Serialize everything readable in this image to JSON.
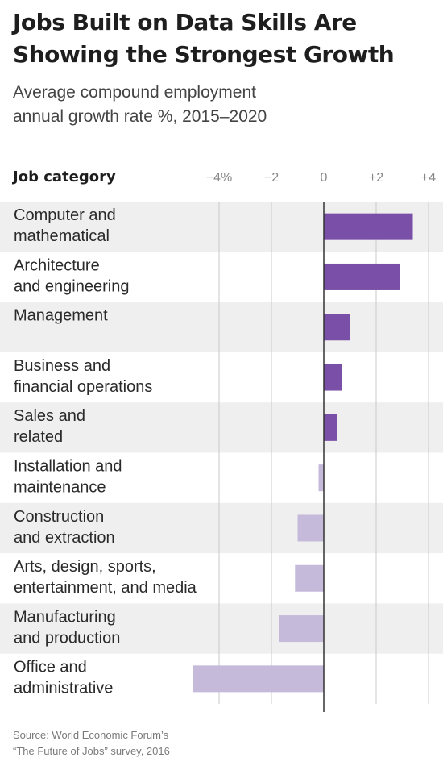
{
  "title_lines": [
    "Jobs Built on Data Skills Are",
    "Showing the Strongest Growth"
  ],
  "subtitle_lines": [
    "Average compound employment",
    "annual growth rate %, 2015–2020"
  ],
  "source_lines": [
    "Source: World Economic Forum’s",
    "“The Future of Jobs” survey, 2016"
  ],
  "colors": {
    "positive": "#7a4fa8",
    "negative": "#c6badb",
    "band": "#efefef",
    "grid": "#c9c9c9",
    "zero": "#333333"
  },
  "chart_data": {
    "type": "bar",
    "orientation": "horizontal",
    "category_header": "Job category",
    "xlim": [
      -5,
      4
    ],
    "ticks": [
      {
        "value": -4,
        "label": "−4%"
      },
      {
        "value": -2,
        "label": "−2"
      },
      {
        "value": 0,
        "label": "0"
      },
      {
        "value": 2,
        "label": "+2"
      },
      {
        "value": 4,
        "label": "+4"
      }
    ],
    "categories": [
      [
        "Computer and",
        "mathematical"
      ],
      [
        "Architecture",
        "and engineering"
      ],
      [
        "Management"
      ],
      [
        "Business and",
        "financial operations"
      ],
      [
        "Sales and",
        "related"
      ],
      [
        "Installation and",
        "maintenance"
      ],
      [
        "Construction",
        "and extraction"
      ],
      [
        "Arts, design, sports,",
        "entertainment, and media"
      ],
      [
        "Manufacturing",
        "and production"
      ],
      [
        "Office and",
        "administrative"
      ]
    ],
    "values": [
      3.4,
      2.9,
      1.0,
      0.7,
      0.5,
      -0.2,
      -1.0,
      -1.1,
      -1.7,
      -5.0
    ],
    "grid": true,
    "alternating_bands": true
  }
}
